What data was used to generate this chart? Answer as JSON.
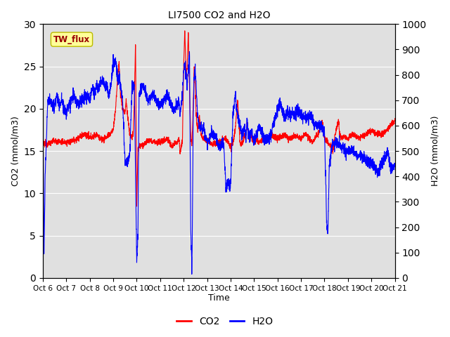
{
  "title": "LI7500 CO2 and H2O",
  "xlabel": "Time",
  "ylabel_left": "CO2 (mmol/m3)",
  "ylabel_right": "H2O (mmol/m3)",
  "legend_label": "TW_flux",
  "co2_label": "CO2",
  "h2o_label": "H2O",
  "co2_color": "#FF0000",
  "h2o_color": "#0000FF",
  "background_color": "#E0E0E0",
  "figure_bg": "#FFFFFF",
  "ylim_left": [
    0,
    30
  ],
  "ylim_right": [
    0,
    1000
  ],
  "x_tick_labels": [
    "Oct 6",
    "Oct 7",
    "Oct 8",
    "Oct 9",
    "Oct 10",
    "Oct 11",
    "Oct 12",
    "Oct 13",
    "Oct 14",
    "Oct 15",
    "Oct 16",
    "Oct 17",
    "Oct 18",
    "Oct 19",
    "Oct 20",
    "Oct 21"
  ],
  "legend_box_color": "#FFFF99",
  "legend_box_edge": "#BBBB00"
}
